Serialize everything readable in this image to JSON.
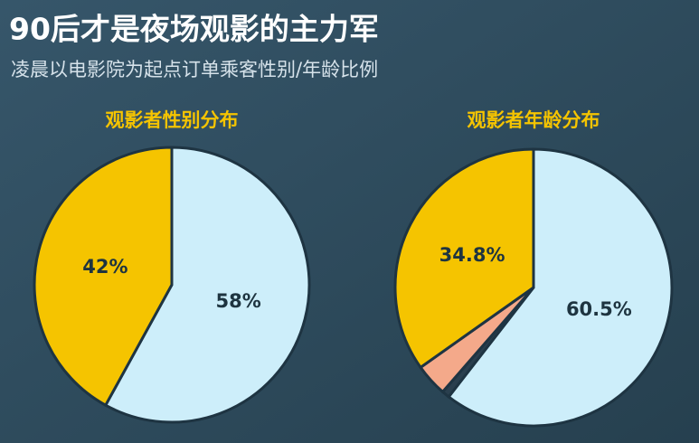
{
  "title": "90后才是夜场观影的主力军",
  "subtitle": "凌晨以电影院为起点订单乘客性别/年龄比例",
  "chart_data": [
    {
      "type": "pie",
      "title": "观影者性别分布",
      "values": [
        58,
        42
      ],
      "value_labels": [
        "58%",
        "42%"
      ],
      "colors": [
        "#cdeefa",
        "#f5c400"
      ]
    },
    {
      "type": "pie",
      "title": "观影者年龄分布",
      "values": [
        60.5,
        0.9,
        3.8,
        34.8
      ],
      "value_labels": [
        "60.5%",
        null,
        null,
        "34.8%"
      ],
      "colors": [
        "#cdeefa",
        "#2a3f4e",
        "#f4a98a",
        "#f5c400"
      ]
    }
  ]
}
